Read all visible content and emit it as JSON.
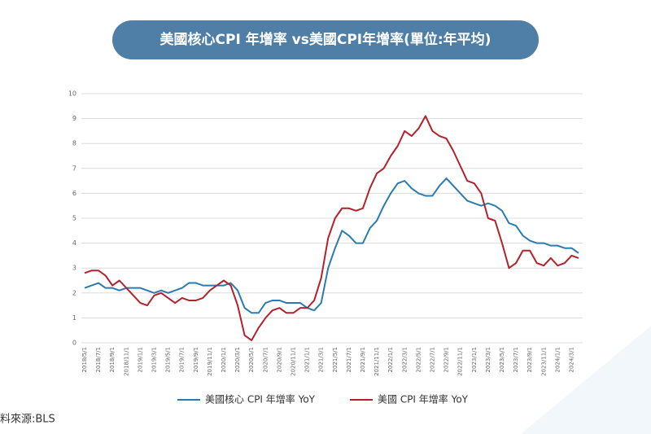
{
  "chart_data": {
    "type": "line",
    "title": "美國核心CPI 年增率 vs美國CPI年增率(單位:年平均)",
    "source": "料來源:BLS",
    "categories": [
      "2018/5/1",
      null,
      "2018/7/1",
      null,
      "2018/9/1",
      null,
      "2018/11/1",
      null,
      "2019/1/1",
      null,
      "2019/3/1",
      null,
      "2019/5/1",
      null,
      "2019/7/1",
      null,
      "2019/9/1",
      null,
      "2019/11/1",
      null,
      "2020/1/1",
      null,
      "2020/3/1",
      null,
      "2020/5/1",
      null,
      "2020/7/1",
      null,
      "2020/9/1",
      null,
      "2020/11/1",
      null,
      "2021/1/1",
      null,
      "2021/3/1",
      null,
      "2021/5/1",
      null,
      "2021/7/1",
      null,
      "2021/9/1",
      null,
      "2021/11/1",
      null,
      "2022/1/1",
      null,
      "2022/3/1",
      null,
      "2022/5/1",
      null,
      "2022/7/1",
      null,
      "2022/9/1",
      null,
      "2022/11/1",
      null,
      "2023/1/1",
      null,
      "2023/3/1",
      null,
      "2023/5/1",
      null,
      "2023/7/1",
      null,
      "2023/9/1",
      null,
      "2023/11/1",
      null,
      "2024/1/1",
      null,
      "2024/3/1",
      null
    ],
    "series": [
      {
        "name": "美國核心 CPI 年增率 YoY",
        "color": "#2b7bb0",
        "values": [
          2.2,
          2.3,
          2.4,
          2.2,
          2.2,
          2.1,
          2.2,
          2.2,
          2.2,
          2.1,
          2.0,
          2.1,
          2.0,
          2.1,
          2.2,
          2.4,
          2.4,
          2.3,
          2.3,
          2.3,
          2.3,
          2.4,
          2.1,
          1.4,
          1.2,
          1.2,
          1.6,
          1.7,
          1.7,
          1.6,
          1.6,
          1.6,
          1.4,
          1.3,
          1.6,
          3.0,
          3.8,
          4.5,
          4.3,
          4.0,
          4.0,
          4.6,
          4.9,
          5.5,
          6.0,
          6.4,
          6.5,
          6.2,
          6.0,
          5.9,
          5.9,
          6.3,
          6.6,
          6.3,
          6.0,
          5.7,
          5.6,
          5.5,
          5.6,
          5.5,
          5.3,
          4.8,
          4.7,
          4.3,
          4.1,
          4.0,
          4.0,
          3.9,
          3.9,
          3.8,
          3.8,
          3.6
        ]
      },
      {
        "name": "美國 CPI 年增率 YoY",
        "color": "#b3222b",
        "values": [
          2.8,
          2.9,
          2.9,
          2.7,
          2.3,
          2.5,
          2.2,
          1.9,
          1.6,
          1.5,
          1.9,
          2.0,
          1.8,
          1.6,
          1.8,
          1.7,
          1.7,
          1.8,
          2.1,
          2.3,
          2.5,
          2.3,
          1.5,
          0.3,
          0.1,
          0.6,
          1.0,
          1.3,
          1.4,
          1.2,
          1.2,
          1.4,
          1.4,
          1.7,
          2.6,
          4.2,
          5.0,
          5.4,
          5.4,
          5.3,
          5.4,
          6.2,
          6.8,
          7.0,
          7.5,
          7.9,
          8.5,
          8.3,
          8.6,
          9.1,
          8.5,
          8.3,
          8.2,
          7.7,
          7.1,
          6.5,
          6.4,
          6.0,
          5.0,
          4.9,
          4.0,
          3.0,
          3.2,
          3.7,
          3.7,
          3.2,
          3.1,
          3.4,
          3.1,
          3.2,
          3.5,
          3.4
        ]
      }
    ],
    "ylim": [
      0,
      10
    ],
    "yticks": [
      0,
      1,
      2,
      3,
      4,
      5,
      6,
      7,
      8,
      9,
      10
    ],
    "grid": true
  }
}
